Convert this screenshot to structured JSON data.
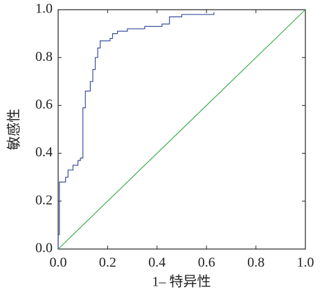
{
  "chart_data": {
    "type": "line",
    "xlabel": "1– 特异性",
    "ylabel": "敏感性",
    "xlim": [
      0,
      1
    ],
    "ylim": [
      0,
      1
    ],
    "xticks": [
      {
        "value": 0,
        "label": "0.0"
      },
      0.2,
      0.4,
      0.6,
      0.8,
      {
        "value": 1,
        "label": "1.0"
      }
    ],
    "yticks": [
      {
        "value": 0,
        "label": "0.0"
      },
      0.2,
      0.4,
      0.6,
      0.8,
      {
        "value": 1,
        "label": "1.0"
      }
    ],
    "series": [
      {
        "color": "#3b4f9e",
        "x": [
          0,
          0,
          0.005,
          0.005,
          0.03,
          0.03,
          0.04,
          0.04,
          0.06,
          0.06,
          0.08,
          0.08,
          0.09,
          0.09,
          0.1,
          0.1,
          0.11,
          0.11,
          0.13,
          0.13,
          0.14,
          0.14,
          0.15,
          0.15,
          0.16,
          0.16,
          0.17,
          0.17,
          0.21,
          0.21,
          0.22,
          0.22,
          0.24,
          0.24,
          0.28,
          0.28,
          0.35,
          0.35,
          0.42,
          0.42,
          0.45,
          0.45,
          0.5,
          0.5,
          0.63,
          0.63
        ],
        "values": [
          0,
          0.06,
          0.06,
          0.28,
          0.28,
          0.3,
          0.3,
          0.33,
          0.33,
          0.35,
          0.35,
          0.37,
          0.37,
          0.38,
          0.38,
          0.59,
          0.59,
          0.66,
          0.66,
          0.7,
          0.7,
          0.75,
          0.75,
          0.8,
          0.8,
          0.84,
          0.84,
          0.87,
          0.87,
          0.88,
          0.88,
          0.9,
          0.9,
          0.91,
          0.91,
          0.92,
          0.92,
          0.93,
          0.93,
          0.94,
          0.94,
          0.97,
          0.97,
          0.98,
          0.98,
          0.99
        ]
      },
      {
        "color": "#3fae49",
        "x": [
          0,
          1
        ],
        "values": [
          0,
          1
        ]
      }
    ]
  }
}
